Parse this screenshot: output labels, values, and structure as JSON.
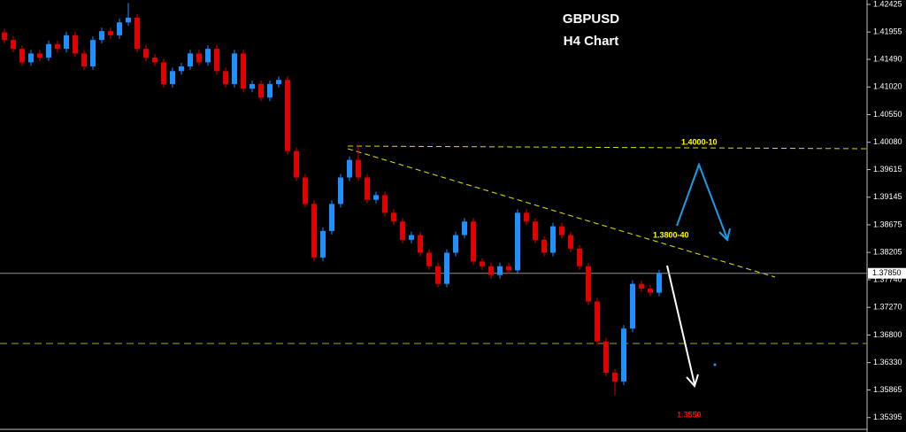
{
  "chart_data": {
    "type": "candlestick",
    "title": "GBPUSD",
    "subtitle": "H4 Chart",
    "up_color": "#1e90ff",
    "down_color": "#e00000",
    "ylim": [
      1.3521,
      1.425
    ],
    "yticks": [
      1.42425,
      1.41955,
      {
        "value": 1.4149,
        "label": "1.41490"
      },
      {
        "value": 1.4102,
        "label": "1.41020"
      },
      {
        "value": 1.4055,
        "label": "1.40550"
      },
      {
        "value": 1.4008,
        "label": "1.40080"
      },
      1.39615,
      1.39145,
      1.38675,
      1.38205,
      {
        "value": 1.3774,
        "label": "1.37740"
      },
      {
        "value": 1.3727,
        "label": "1.37270"
      },
      {
        "value": 1.368,
        "label": "1.36800"
      },
      {
        "value": 1.3633,
        "label": "1.36330"
      },
      1.35865,
      1.35395
    ],
    "last_price": {
      "value": 1.3785,
      "label": "1.37850"
    },
    "annotations": [
      {
        "text": "1.4000-10",
        "color": "#ffff00"
      },
      {
        "text": "1.3800-40",
        "color": "#ffff00"
      },
      {
        "text": "1.3550",
        "color": "#ff0000"
      }
    ],
    "open": [
      1.4195,
      1.4182,
      1.4167,
      1.4144,
      1.4159,
      1.4152,
      1.4175,
      1.4167,
      1.419,
      1.4159,
      1.4137,
      1.4182,
      1.4197,
      1.419,
      1.4212,
      1.422,
      1.4167,
      1.4152,
      1.4144,
      1.4107,
      1.4129,
      1.4137,
      1.4159,
      1.4144,
      1.4167,
      1.4129,
      1.4107,
      1.4159,
      1.4099,
      1.4107,
      1.4084,
      1.4107,
      1.4114,
      1.3993,
      1.3948,
      1.3903,
      1.3812,
      1.3857,
      1.3903,
      1.3948,
      1.3978,
      1.3948,
      1.391,
      1.3918,
      1.3888,
      1.3873,
      1.3842,
      1.385,
      1.382,
      1.3797,
      1.3767,
      1.382,
      1.385,
      1.3873,
      1.3805,
      1.3797,
      1.3782,
      1.3797,
      1.379,
      1.3888,
      1.3873,
      1.3842,
      1.382,
      1.3865,
      1.385,
      1.3827,
      1.3797,
      1.3737,
      1.3669,
      1.3616,
      1.3601,
      1.3691,
      1.3767,
      1.3759,
      1.3752
    ],
    "high": [
      1.4201,
      1.4188,
      1.4173,
      1.4165,
      1.4165,
      1.4181,
      1.4181,
      1.4196,
      1.4196,
      1.4165,
      1.4188,
      1.4203,
      1.4203,
      1.4218,
      1.4245,
      1.4226,
      1.4173,
      1.4158,
      1.415,
      1.4135,
      1.4143,
      1.4165,
      1.4165,
      1.4173,
      1.4173,
      1.4135,
      1.4165,
      1.4165,
      1.4113,
      1.4113,
      1.4113,
      1.412,
      1.412,
      1.3999,
      1.3954,
      1.3909,
      1.3863,
      1.3909,
      1.3954,
      1.3984,
      1.4003,
      1.3954,
      1.3924,
      1.3924,
      1.3894,
      1.3879,
      1.3856,
      1.3856,
      1.3826,
      1.3803,
      1.3826,
      1.3856,
      1.3879,
      1.3879,
      1.3811,
      1.3803,
      1.3803,
      1.3803,
      1.3894,
      1.3894,
      1.3879,
      1.3848,
      1.3871,
      1.3871,
      1.3856,
      1.3833,
      1.3803,
      1.3743,
      1.3675,
      1.3622,
      1.3697,
      1.3773,
      1.3773,
      1.3765,
      1.3791
    ],
    "low": [
      1.4176,
      1.4161,
      1.4138,
      1.4138,
      1.4146,
      1.4146,
      1.4161,
      1.4161,
      1.4153,
      1.4131,
      1.4131,
      1.4176,
      1.4184,
      1.4184,
      1.4206,
      1.4161,
      1.4146,
      1.4138,
      1.4101,
      1.4101,
      1.4123,
      1.4131,
      1.4138,
      1.4138,
      1.4123,
      1.4101,
      1.4101,
      1.4093,
      1.4093,
      1.4078,
      1.4078,
      1.4101,
      1.3987,
      1.3942,
      1.3897,
      1.3806,
      1.3806,
      1.3851,
      1.3897,
      1.3942,
      1.3942,
      1.3904,
      1.3904,
      1.3882,
      1.3867,
      1.3836,
      1.3836,
      1.3814,
      1.3791,
      1.3761,
      1.3761,
      1.3814,
      1.3844,
      1.3799,
      1.3791,
      1.3776,
      1.3776,
      1.3784,
      1.3784,
      1.3867,
      1.3836,
      1.3814,
      1.3814,
      1.3844,
      1.3821,
      1.3791,
      1.3731,
      1.3663,
      1.361,
      1.3578,
      1.3595,
      1.3685,
      1.3753,
      1.3746,
      1.3746
    ],
    "close": [
      1.4182,
      1.4167,
      1.4144,
      1.4159,
      1.4152,
      1.4175,
      1.4167,
      1.419,
      1.4159,
      1.4137,
      1.4182,
      1.4197,
      1.419,
      1.4212,
      1.422,
      1.4167,
      1.4152,
      1.4144,
      1.4107,
      1.4129,
      1.4137,
      1.4159,
      1.4144,
      1.4167,
      1.4129,
      1.4107,
      1.4159,
      1.4099,
      1.4107,
      1.4084,
      1.4107,
      1.4114,
      1.3993,
      1.3948,
      1.3903,
      1.3812,
      1.3857,
      1.3903,
      1.3948,
      1.3978,
      1.3948,
      1.391,
      1.3918,
      1.3888,
      1.3873,
      1.3842,
      1.385,
      1.382,
      1.3797,
      1.3767,
      1.382,
      1.385,
      1.3873,
      1.3805,
      1.3797,
      1.3782,
      1.3797,
      1.379,
      1.3888,
      1.3873,
      1.3842,
      1.382,
      1.3865,
      1.385,
      1.3827,
      1.3797,
      1.3737,
      1.3669,
      1.3616,
      1.3601,
      1.3691,
      1.3767,
      1.3759,
      1.3752,
      1.3785
    ]
  }
}
